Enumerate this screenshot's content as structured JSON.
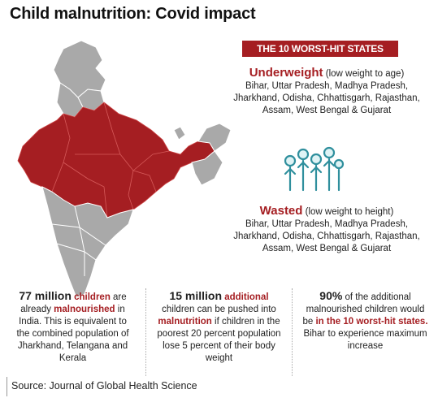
{
  "title": "Child malnutrition: Covid impact",
  "badge": "THE 10 WORST-HIT STATES",
  "underweight": {
    "head": "Underweight",
    "note": " (low weight to age)",
    "line1": "Bihar, Uttar Pradesh, Madhya Pradesh,",
    "line2": "Jharkhand, Odisha, Chhattisgarh, Rajasthan,",
    "line3": "Assam, West Bengal & Gujarat"
  },
  "wasted": {
    "head": "Wasted",
    "note": " (low weight to height)",
    "line1": "Bihar, Uttar Pradesh, Madhya Pradesh,",
    "line2": "Jharkhand, Odisha, Chhattisgarh, Rajasthan,",
    "line3": "Assam, West Bengal & Gujarat"
  },
  "stat1": {
    "big": "77 million",
    "red1": "children",
    "t1": " are",
    "t2": "already ",
    "red2": "malnourished",
    "t3": " in",
    "t4": "India. This is equivalent to",
    "t5": "the combined population of",
    "t6": "Jharkhand, Telangana and",
    "t7": "Kerala"
  },
  "stat2": {
    "big": "15 million",
    "red1": "additional",
    "t1": "children can be pushed into",
    "red2": "malnutrition",
    "t2": " if children in the",
    "t3": "poorest 20 percent population",
    "t4": "lose 5 percent of their body",
    "t5": "weight"
  },
  "stat3": {
    "big": "90%",
    "t1": " of the additional",
    "t2": "malnourished children would",
    "t3": "be ",
    "red1": "in the 10 worst-hit states.",
    "t4": "Bihar to experience maximum",
    "t5": "increase"
  },
  "source": "Source: Journal of Global Health Science",
  "colors": {
    "accent": "#a51e22",
    "map_gray": "#a9a9a9"
  }
}
